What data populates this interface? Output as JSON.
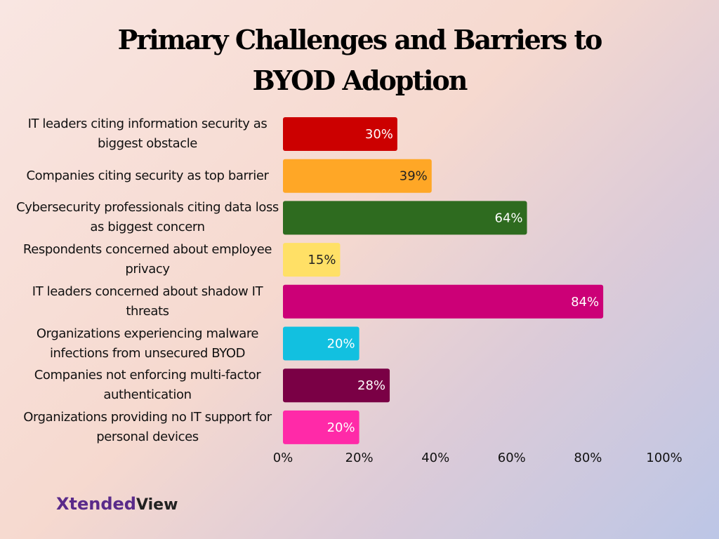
{
  "chart_data": {
    "type": "bar",
    "orientation": "horizontal",
    "title": "Primary Challenges and Barriers to BYOD Adoption",
    "categories": [
      "IT leaders citing information security as biggest obstacle",
      "Companies citing security as top barrier",
      "Cybersecurity professionals citing data loss as biggest concern",
      "Respondents concerned about employee privacy",
      "IT leaders concerned about shadow IT threats",
      "Organizations experiencing malware infections from unsecured BYOD",
      "Companies not enforcing multi-factor authentication",
      "Organizations providing no IT support for personal devices"
    ],
    "values": [
      30,
      39,
      64,
      15,
      84,
      20,
      28,
      20
    ],
    "value_labels": [
      "30%",
      "39%",
      "64%",
      "15%",
      "84%",
      "20%",
      "28%",
      "20%"
    ],
    "colors": [
      "#cc0000",
      "#ffa726",
      "#2e6b1f",
      "#ffe066",
      "#cc0077",
      "#12c0e0",
      "#7a0045",
      "#ff2aa8"
    ],
    "xlim": [
      0,
      100
    ],
    "xticks": [
      {
        "value": 0,
        "label": "0%"
      },
      {
        "value": 20,
        "label": "20%"
      },
      {
        "value": 40,
        "label": "40%"
      },
      {
        "value": 60,
        "label": "60%"
      },
      {
        "value": 80,
        "label": "80%"
      },
      {
        "value": 100,
        "label": "100%"
      }
    ],
    "grid": false
  },
  "logo": {
    "part1": "Xtended",
    "part2": "View"
  }
}
